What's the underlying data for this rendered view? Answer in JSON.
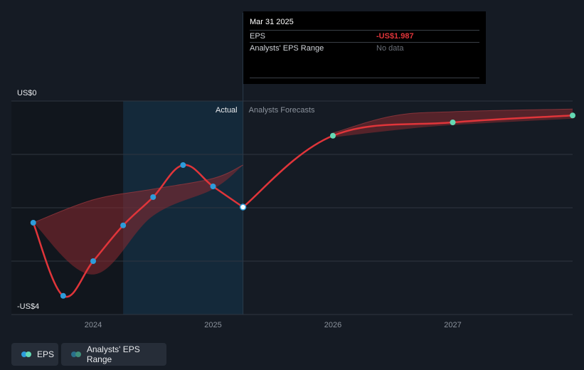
{
  "chart_data": {
    "type": "line",
    "title": "EPS",
    "y_axis": {
      "top_label": "US$0",
      "bottom_label": "-US$4",
      "ylim": [
        -4,
        0
      ]
    },
    "x_axis": {
      "ticks": [
        "2024",
        "2025",
        "2026",
        "2027"
      ],
      "range": [
        2023.5,
        2028.0
      ]
    },
    "divider": {
      "x": 2025.25,
      "left_label": "Actual",
      "right_label": "Analysts Forecasts"
    },
    "eps_actual": {
      "x": [
        2023.5,
        2023.75,
        2024.0,
        2024.25,
        2024.5,
        2024.75,
        2025.0,
        2025.25
      ],
      "y": [
        -2.28,
        -3.65,
        -3.0,
        -2.33,
        -1.8,
        -1.2,
        -1.6,
        -1.987
      ]
    },
    "eps_forecast": {
      "x": [
        2025.25,
        2026.0,
        2027.0,
        2028.0
      ],
      "y": [
        -1.987,
        -0.65,
        -0.4,
        -0.27
      ]
    },
    "actual_range": {
      "x": [
        2023.5,
        2024.0,
        2024.5,
        2025.0,
        2025.25
      ],
      "upper": [
        -2.28,
        -1.85,
        -1.65,
        -1.45,
        -1.2
      ],
      "lower": [
        -2.28,
        -3.25,
        -2.15,
        -1.65,
        -1.2
      ]
    },
    "forecast_range": {
      "x": [
        2026.0,
        2026.5,
        2027.0,
        2028.0
      ],
      "upper": [
        -0.6,
        -0.28,
        -0.2,
        -0.15
      ],
      "lower": [
        -0.68,
        -0.55,
        -0.45,
        -0.33
      ]
    },
    "highlight_point": {
      "x": 2025.25,
      "y": -1.987
    }
  },
  "tooltip": {
    "date": "Mar 31 2025",
    "eps_label": "EPS",
    "eps_value": "-US$1.987",
    "range_label": "Analysts' EPS Range",
    "range_value": "No data"
  },
  "legend": {
    "eps": "EPS",
    "range": "Analysts' EPS Range"
  },
  "colors": {
    "background": "#151b24",
    "line": "#e0353a",
    "area": "#8b2a30",
    "point_actual": "#2d9cdb",
    "point_forecast": "#64d9b4",
    "grid": "#2e3540",
    "text_muted": "#8b929c"
  }
}
